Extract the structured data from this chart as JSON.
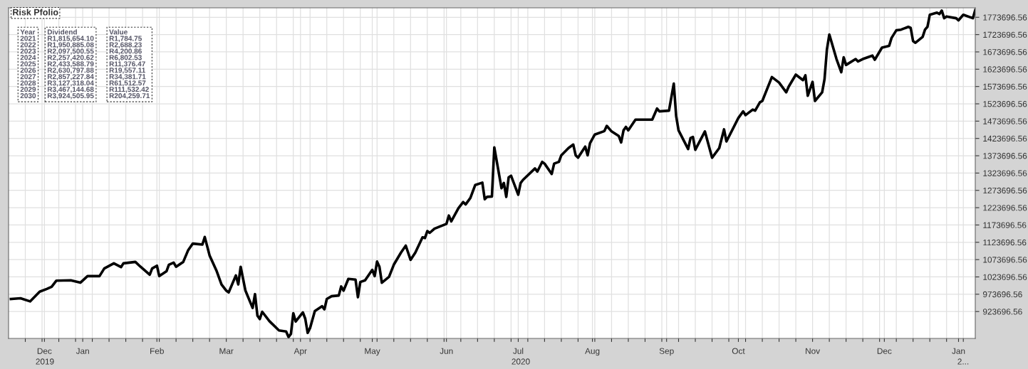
{
  "chart_data": {
    "type": "line",
    "title": "Risk Pfolio",
    "x": [
      "2019-12-02",
      "2019-12-06",
      "2019-12-10",
      "2019-12-14",
      "2019-12-17",
      "2019-12-19",
      "2019-12-21",
      "2019-12-27",
      "2019-12-31",
      "2020-01-03",
      "2020-01-08",
      "2020-01-10",
      "2020-01-14",
      "2020-01-17",
      "2020-01-18",
      "2020-01-23",
      "2020-01-25",
      "2020-01-29",
      "2020-01-30",
      "2020-02-01",
      "2020-02-02",
      "2020-02-05",
      "2020-02-06",
      "2020-02-08",
      "2020-02-09",
      "2020-02-12",
      "2020-02-14",
      "2020-02-16",
      "2020-02-20",
      "2020-02-21",
      "2020-02-23",
      "2020-02-26",
      "2020-02-28",
      "2020-03-01",
      "2020-03-02",
      "2020-03-05",
      "2020-03-06",
      "2020-03-07",
      "2020-03-09",
      "2020-03-12",
      "2020-03-13",
      "2020-03-14",
      "2020-03-15",
      "2020-03-16",
      "2020-03-19",
      "2020-03-23",
      "2020-03-26",
      "2020-03-27",
      "2020-03-28",
      "2020-03-29",
      "2020-03-30",
      "2020-04-02",
      "2020-04-03",
      "2020-04-04",
      "2020-04-05",
      "2020-04-07",
      "2020-04-10",
      "2020-04-11",
      "2020-04-12",
      "2020-04-14",
      "2020-04-17",
      "2020-04-18",
      "2020-04-19",
      "2020-04-21",
      "2020-04-24",
      "2020-04-25",
      "2020-04-26",
      "2020-04-28",
      "2020-05-01",
      "2020-05-02",
      "2020-05-03",
      "2020-05-04",
      "2020-05-05",
      "2020-05-08",
      "2020-05-10",
      "2020-05-13",
      "2020-05-15",
      "2020-05-17",
      "2020-05-19",
      "2020-05-22",
      "2020-05-23",
      "2020-05-24",
      "2020-05-25",
      "2020-05-27",
      "2020-06-01",
      "2020-06-02",
      "2020-06-03",
      "2020-06-06",
      "2020-06-08",
      "2020-06-09",
      "2020-06-11",
      "2020-06-13",
      "2020-06-16",
      "2020-06-17",
      "2020-06-18",
      "2020-06-20",
      "2020-06-21",
      "2020-06-24",
      "2020-06-25",
      "2020-06-26",
      "2020-06-27",
      "2020-06-28",
      "2020-07-01",
      "2020-07-02",
      "2020-07-03",
      "2020-07-08",
      "2020-07-09",
      "2020-07-11",
      "2020-07-12",
      "2020-07-15",
      "2020-07-16",
      "2020-07-18",
      "2020-07-19",
      "2020-07-22",
      "2020-07-24",
      "2020-07-25",
      "2020-07-26",
      "2020-07-29",
      "2020-07-30",
      "2020-07-31",
      "2020-08-02",
      "2020-08-06",
      "2020-08-07",
      "2020-08-09",
      "2020-08-12",
      "2020-08-13",
      "2020-08-14",
      "2020-08-15",
      "2020-08-16",
      "2020-08-19",
      "2020-08-22",
      "2020-08-26",
      "2020-08-28",
      "2020-08-29",
      "2020-09-02",
      "2020-09-04",
      "2020-09-05",
      "2020-09-06",
      "2020-09-10",
      "2020-09-11",
      "2020-09-12",
      "2020-09-13",
      "2020-09-17",
      "2020-09-20",
      "2020-09-23",
      "2020-09-25",
      "2020-09-26",
      "2020-10-01",
      "2020-10-03",
      "2020-10-04",
      "2020-10-07",
      "2020-10-08",
      "2020-10-10",
      "2020-10-11",
      "2020-10-15",
      "2020-10-18",
      "2020-10-21",
      "2020-10-22",
      "2020-10-25",
      "2020-10-28",
      "2020-10-29",
      "2020-10-30",
      "2020-11-01",
      "2020-11-02",
      "2020-11-05",
      "2020-11-06",
      "2020-11-07",
      "2020-11-08",
      "2020-11-11",
      "2020-11-13",
      "2020-11-14",
      "2020-11-15",
      "2020-11-19",
      "2020-11-20",
      "2020-11-22",
      "2020-11-26",
      "2020-11-27",
      "2020-11-30",
      "2020-12-03",
      "2020-12-04",
      "2020-12-06",
      "2020-12-08",
      "2020-12-11",
      "2020-12-12",
      "2020-12-13",
      "2020-12-14",
      "2020-12-17",
      "2020-12-18",
      "2020-12-19",
      "2020-12-20",
      "2020-12-23",
      "2020-12-24",
      "2020-12-25",
      "2020-12-26",
      "2020-12-27",
      "2020-12-31",
      "2021-01-01",
      "2021-01-03",
      "2021-01-07",
      "2021-01-08"
    ],
    "series": [
      {
        "color": "#000000",
        "values": [
          960000,
          962000,
          953000,
          981000,
          989000,
          995000,
          1013000,
          1014000,
          1007000,
          1026000,
          1026000,
          1048000,
          1063000,
          1052000,
          1063000,
          1067000,
          1054000,
          1030000,
          1048000,
          1056000,
          1026000,
          1040000,
          1059000,
          1065000,
          1053000,
          1067000,
          1100000,
          1120000,
          1117000,
          1139000,
          1086000,
          1040000,
          1002000,
          984000,
          979000,
          1028000,
          1002000,
          1053000,
          984000,
          934000,
          974000,
          912000,
          902000,
          923000,
          896000,
          869000,
          866000,
          850000,
          859000,
          919000,
          895000,
          921000,
          903000,
          862000,
          876000,
          925000,
          939000,
          930000,
          960000,
          968000,
          970000,
          996000,
          984000,
          1018000,
          1016000,
          965000,
          1009000,
          1014000,
          1044000,
          1026000,
          1068000,
          1053000,
          1007000,
          1024000,
          1059000,
          1094000,
          1114000,
          1073000,
          1094000,
          1138000,
          1136000,
          1156000,
          1151000,
          1163000,
          1177000,
          1201000,
          1184000,
          1222000,
          1240000,
          1233000,
          1252000,
          1289000,
          1296000,
          1248000,
          1255000,
          1256000,
          1398000,
          1280000,
          1295000,
          1255000,
          1311000,
          1316000,
          1261000,
          1295000,
          1304000,
          1337000,
          1328000,
          1356000,
          1351000,
          1321000,
          1351000,
          1356000,
          1375000,
          1396000,
          1406000,
          1375000,
          1368000,
          1400000,
          1375000,
          1410000,
          1435000,
          1445000,
          1460000,
          1444000,
          1431000,
          1412000,
          1447000,
          1457000,
          1447000,
          1478000,
          1478000,
          1478000,
          1510000,
          1502000,
          1504000,
          1582000,
          1488000,
          1447000,
          1393000,
          1425000,
          1428000,
          1391000,
          1444000,
          1368000,
          1396000,
          1450000,
          1415000,
          1483000,
          1502000,
          1491000,
          1507000,
          1504000,
          1528000,
          1532000,
          1601000,
          1585000,
          1557000,
          1573000,
          1608000,
          1592000,
          1606000,
          1547000,
          1587000,
          1532000,
          1557000,
          1595000,
          1681000,
          1724000,
          1653000,
          1615000,
          1658000,
          1636000,
          1653000,
          1646000,
          1653000,
          1663000,
          1651000,
          1686000,
          1691000,
          1714000,
          1736000,
          1738000,
          1746000,
          1743000,
          1705000,
          1700000,
          1717000,
          1738000,
          1746000,
          1781000,
          1787000,
          1783000,
          1793000,
          1771000,
          1776000,
          1771000,
          1765000,
          1781000,
          1771000,
          1795000
        ]
      }
    ],
    "xlim": [
      "2019-12-01",
      "2021-01-08"
    ],
    "xticks": [
      {
        "value": "2019-12-08",
        "label": null
      },
      {
        "value": "2019-12-15",
        "label": null
      },
      {
        "value": "2019-12-16",
        "label": "Dec"
      },
      {
        "value": "2019-12-22",
        "label": null
      },
      {
        "value": "2019-12-29",
        "label": null
      },
      {
        "value": "2020-01-01",
        "label": "Jan"
      },
      {
        "value": "2020-01-05",
        "label": null
      },
      {
        "value": "2020-01-12",
        "label": null
      },
      {
        "value": "2020-01-19",
        "label": null
      },
      {
        "value": "2020-01-26",
        "label": null
      },
      {
        "value": "2020-02-01",
        "label": "Feb"
      },
      {
        "value": "2020-02-02",
        "label": null
      },
      {
        "value": "2020-02-09",
        "label": null
      },
      {
        "value": "2020-02-16",
        "label": null
      },
      {
        "value": "2020-02-23",
        "label": null
      },
      {
        "value": "2020-03-01",
        "label": "Mar"
      },
      {
        "value": "2020-03-08",
        "label": null
      },
      {
        "value": "2020-03-15",
        "label": null
      },
      {
        "value": "2020-03-22",
        "label": null
      },
      {
        "value": "2020-03-29",
        "label": null
      },
      {
        "value": "2020-04-01",
        "label": "Apr"
      },
      {
        "value": "2020-04-05",
        "label": null
      },
      {
        "value": "2020-04-12",
        "label": null
      },
      {
        "value": "2020-04-19",
        "label": null
      },
      {
        "value": "2020-04-26",
        "label": null
      },
      {
        "value": "2020-05-01",
        "label": "May"
      },
      {
        "value": "2020-05-03",
        "label": null
      },
      {
        "value": "2020-05-10",
        "label": null
      },
      {
        "value": "2020-05-17",
        "label": null
      },
      {
        "value": "2020-05-24",
        "label": null
      },
      {
        "value": "2020-05-31",
        "label": null
      },
      {
        "value": "2020-06-01",
        "label": "Jun"
      },
      {
        "value": "2020-06-07",
        "label": null
      },
      {
        "value": "2020-06-14",
        "label": null
      },
      {
        "value": "2020-06-21",
        "label": null
      },
      {
        "value": "2020-06-28",
        "label": null
      },
      {
        "value": "2020-07-01",
        "label": "Jul"
      },
      {
        "value": "2020-07-05",
        "label": null
      },
      {
        "value": "2020-07-12",
        "label": null
      },
      {
        "value": "2020-07-19",
        "label": null
      },
      {
        "value": "2020-07-26",
        "label": null
      },
      {
        "value": "2020-08-01",
        "label": "Aug"
      },
      {
        "value": "2020-08-02",
        "label": null
      },
      {
        "value": "2020-08-09",
        "label": null
      },
      {
        "value": "2020-08-16",
        "label": null
      },
      {
        "value": "2020-08-23",
        "label": null
      },
      {
        "value": "2020-08-30",
        "label": null
      },
      {
        "value": "2020-09-01",
        "label": "Sep"
      },
      {
        "value": "2020-09-06",
        "label": null
      },
      {
        "value": "2020-09-13",
        "label": null
      },
      {
        "value": "2020-09-20",
        "label": null
      },
      {
        "value": "2020-09-27",
        "label": null
      },
      {
        "value": "2020-10-01",
        "label": "Oct"
      },
      {
        "value": "2020-10-04",
        "label": null
      },
      {
        "value": "2020-10-11",
        "label": null
      },
      {
        "value": "2020-10-18",
        "label": null
      },
      {
        "value": "2020-10-25",
        "label": null
      },
      {
        "value": "2020-11-01",
        "label": "Nov"
      },
      {
        "value": "2020-11-08",
        "label": null
      },
      {
        "value": "2020-11-15",
        "label": null
      },
      {
        "value": "2020-11-22",
        "label": null
      },
      {
        "value": "2020-11-29",
        "label": null
      },
      {
        "value": "2020-12-01",
        "label": "Dec"
      },
      {
        "value": "2020-12-06",
        "label": null
      },
      {
        "value": "2020-12-13",
        "label": null
      },
      {
        "value": "2020-12-20",
        "label": null
      },
      {
        "value": "2020-12-27",
        "label": null
      },
      {
        "value": "2021-01-01",
        "label": "Jan"
      },
      {
        "value": "2021-01-03",
        "label": null
      }
    ],
    "ylim": [
      846000,
      1801000
    ],
    "yticks": [
      923696.56,
      973696.56,
      1023696.56,
      1073696.56,
      1123696.56,
      1173696.56,
      1223696.56,
      1273696.56,
      1323696.56,
      1373696.56,
      1423696.56,
      1473696.56,
      1523696.56,
      1573696.56,
      1623696.56,
      1673696.56,
      1723696.56,
      1773696.56
    ],
    "grid": true,
    "legend": false,
    "marker": "none",
    "line_style": "solid",
    "annotations": [
      "Year\n2021\n2022\n2023\n2024\n2025\n2026\n2027\n2028\n2029\n2030",
      "Dividend\nR1,815,654.10\nR1,950,885.08\nR2,097,500.55\nR2,257,420.62\nR2,433,588.79\nR2,630,797.88\nR2,857,227.84\nR3,127,318.04\nR3,467,144.68\nR3,924,505.95",
      "Value\nR1,784.75\nR2,688.23\nR4,200.86\nR6,802.53\nR11,376.47\nR19,557.11\nR34,381.71\nR61,512.57\nR111,532.42\nR204,259.71",
      "2019",
      "2020",
      "2..."
    ]
  }
}
